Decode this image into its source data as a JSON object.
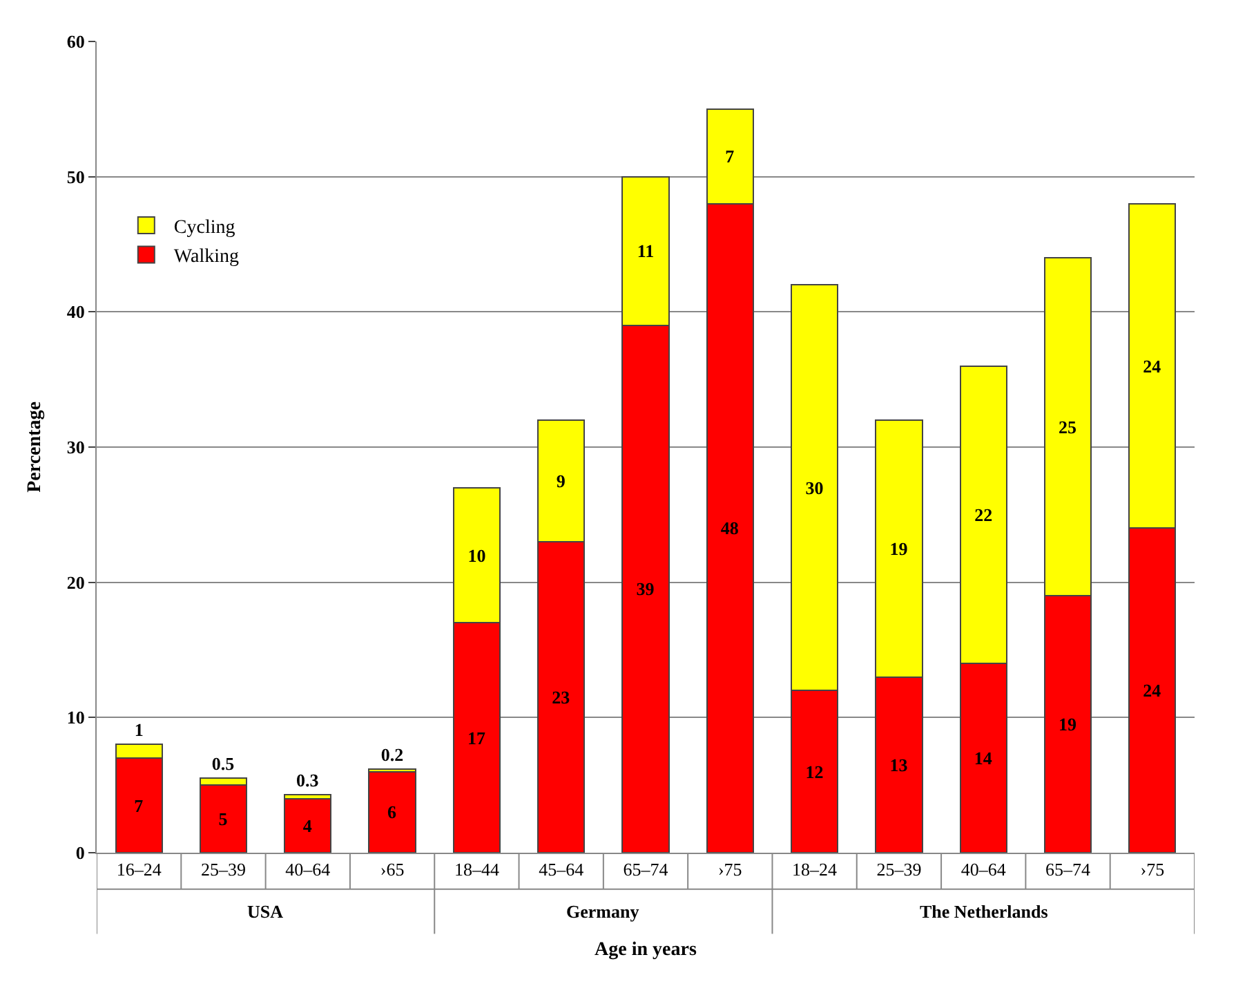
{
  "chart_data": {
    "type": "bar",
    "stacked": true,
    "xlabel": "Age in years",
    "ylabel": "Percentage",
    "categories": [
      "16–24",
      "25–39",
      "40–64",
      "›65",
      "18–44",
      "45–64",
      "65–74",
      "›75",
      "18–24",
      "25–39",
      "40–64",
      "65–74",
      "›75"
    ],
    "annotations": [
      "USA",
      "Germany",
      "The Netherlands"
    ],
    "series": [
      {
        "name": "Walking",
        "color": "#ff0000",
        "values": [
          7,
          5,
          4,
          6,
          17,
          23,
          39,
          48,
          12,
          13,
          14,
          19,
          24
        ]
      },
      {
        "name": "Cycling",
        "color": "#ffff00",
        "values": [
          1,
          0.5,
          0.3,
          0.2,
          10,
          9,
          11,
          7,
          30,
          19,
          22,
          25,
          24
        ]
      }
    ],
    "ylim": [
      0,
      60
    ],
    "yticks": [
      0,
      10,
      20,
      30,
      40,
      50,
      60
    ],
    "grid": "y",
    "legend": "top left",
    "data_labels": true
  }
}
